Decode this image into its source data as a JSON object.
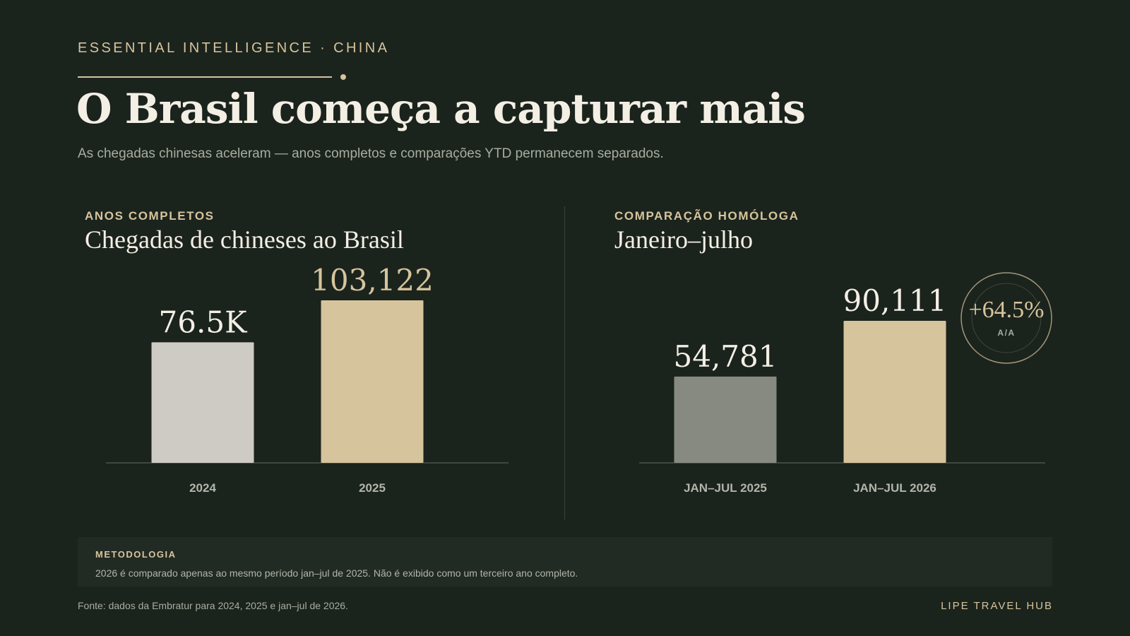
{
  "header": {
    "eyebrow": "ESSENTIAL INTELLIGENCE · CHINA",
    "title": "O Brasil começa a capturar mais",
    "subtitle": "As chegadas chinesas aceleram — anos completos e comparações YTD permanecem separados."
  },
  "colors": {
    "background": "#1b231d",
    "accent": "#d6c49c",
    "bar_light_gray": "#cdcbc4",
    "bar_dark_gray": "#878a80",
    "bar_gold": "#d6c49c"
  },
  "chart_data": [
    {
      "type": "bar",
      "kicker": "ANOS COMPLETOS",
      "title": "Chegadas de chineses ao Brasil",
      "categories": [
        "2024",
        "2025"
      ],
      "values": [
        76500,
        103122
      ],
      "value_labels": [
        "76.5K",
        "103,122"
      ],
      "bar_colors": [
        "#cdcbc4",
        "#d6c49c"
      ],
      "ylim": [
        0,
        103122
      ],
      "grid": false
    },
    {
      "type": "bar",
      "kicker": "COMPARAÇÃO HOMÓLOGA",
      "title": "Janeiro–julho",
      "categories": [
        "JAN–JUL 2025",
        "JAN–JUL 2026"
      ],
      "values": [
        54781,
        90111
      ],
      "value_labels": [
        "54,781",
        "90,111"
      ],
      "bar_colors": [
        "#878a80",
        "#d6c49c"
      ],
      "ylim": [
        0,
        103122
      ],
      "grid": false,
      "badge": {
        "value": "+64.5%",
        "label": "A/A"
      }
    }
  ],
  "methodology": {
    "label": "METODOLOGIA",
    "text": "2026 é comparado apenas ao mesmo período jan–jul de 2025. Não é exibido como um terceiro ano completo."
  },
  "footer": {
    "source": "Fonte: dados da Embratur para 2024, 2025 e jan–jul de 2026.",
    "brand": "LIPE TRAVEL HUB"
  }
}
